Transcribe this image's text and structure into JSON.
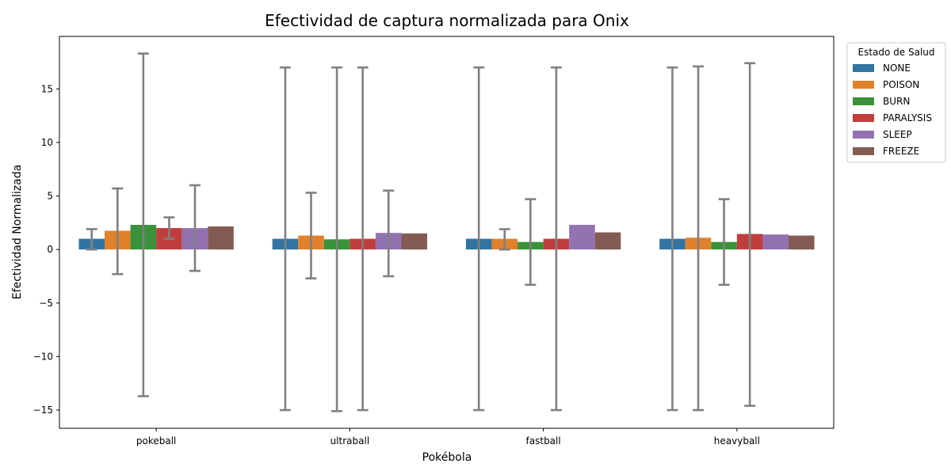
{
  "chart_data": {
    "type": "bar",
    "title": "Efectividad de captura normalizada para Onix",
    "xlabel": "Pokébola",
    "ylabel": "Efectividad Normalizada",
    "categories": [
      "pokeball",
      "ultraball",
      "fastball",
      "heavyball"
    ],
    "ylim": [
      -16.7,
      19.9
    ],
    "yticks": [
      -15,
      -10,
      -5,
      0,
      5,
      10,
      15
    ],
    "ytick_labels": [
      "−15",
      "−10",
      "−5",
      "0",
      "5",
      "10",
      "15"
    ],
    "grid": false,
    "legend": {
      "title": "Estado de Salud",
      "placement": "outside-top-right"
    },
    "series": [
      {
        "name": "NONE",
        "color": "#3274a1",
        "values": [
          1.0,
          1.0,
          1.0,
          1.0
        ],
        "err_low": [
          0.0,
          -15.0,
          -15.0,
          -15.0
        ],
        "err_high": [
          1.9,
          17.0,
          17.0,
          17.0
        ]
      },
      {
        "name": "POISON",
        "color": "#e1812c",
        "values": [
          1.75,
          1.3,
          1.0,
          1.1
        ],
        "err_low": [
          -2.3,
          -2.7,
          0.0,
          -15.0
        ],
        "err_high": [
          5.7,
          5.3,
          1.9,
          17.1
        ]
      },
      {
        "name": "BURN",
        "color": "#3a923a",
        "values": [
          2.3,
          0.95,
          0.7,
          0.7
        ],
        "err_low": [
          -13.7,
          -15.1,
          -3.3,
          -3.3
        ],
        "err_high": [
          18.3,
          17.0,
          4.7,
          4.7
        ]
      },
      {
        "name": "PARALYSIS",
        "color": "#c03d3e",
        "values": [
          2.0,
          1.0,
          1.0,
          1.45
        ],
        "err_low": [
          1.0,
          -15.0,
          -15.0,
          -14.6
        ],
        "err_high": [
          3.0,
          17.0,
          17.0,
          17.4
        ]
      },
      {
        "name": "SLEEP",
        "color": "#9372b2",
        "values": [
          2.0,
          1.55,
          2.3,
          1.4
        ],
        "err_low": [
          -2.0,
          -2.5,
          null,
          null
        ],
        "err_high": [
          6.0,
          5.5,
          null,
          null
        ]
      },
      {
        "name": "FREEZE",
        "color": "#845b53",
        "values": [
          2.15,
          1.5,
          1.6,
          1.3
        ],
        "err_low": [
          null,
          null,
          null,
          null
        ],
        "err_high": [
          null,
          null,
          null,
          null
        ]
      }
    ],
    "errorbar_color": "#808080"
  }
}
